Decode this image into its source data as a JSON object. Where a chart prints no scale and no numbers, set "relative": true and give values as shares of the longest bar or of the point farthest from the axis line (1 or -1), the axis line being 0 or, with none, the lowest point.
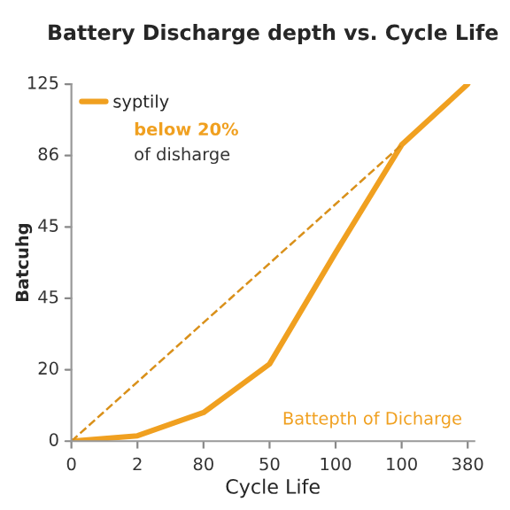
{
  "chart_data": {
    "type": "line",
    "title": "Battery Discharge depth vs. Cycle Life",
    "xlabel": "Cycle Life",
    "ylabel": "Batcuhg",
    "relative": true,
    "categories": [
      "0",
      "2",
      "80",
      "50",
      "100",
      "100",
      "380"
    ],
    "series": [
      {
        "name": "syptily",
        "color": "#f0a020",
        "values": [
          0,
          0.015,
          0.08,
          0.216,
          0.528,
          0.83,
          1.0
        ]
      },
      {
        "color": "#d9901a",
        "line_style": "dashed",
        "values": [
          0,
          0.166,
          0.332,
          0.498,
          0.664,
          0.83,
          null
        ]
      }
    ],
    "annotations": [
      "below 20%",
      "of disharge",
      "Battepth of Dicharge",
      "0",
      "20",
      "45",
      "45",
      "86",
      "125"
    ],
    "legend": "top left",
    "grid": false,
    "marker": "none"
  }
}
